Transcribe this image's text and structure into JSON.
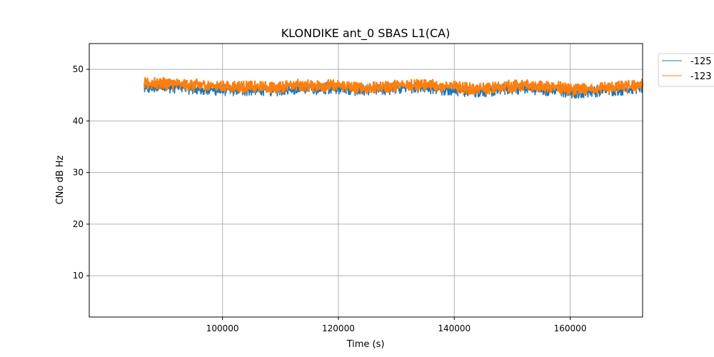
{
  "chart_data": {
    "type": "line",
    "title": "KLONDIKE ant_0 SBAS L1(CA)",
    "xlabel": "Time (s)",
    "ylabel": "CNo dB Hz",
    "xlim": [
      77000,
      172500
    ],
    "ylim": [
      2,
      55
    ],
    "xticks": [
      100000,
      120000,
      140000,
      160000
    ],
    "yticks": [
      10,
      20,
      30,
      40,
      50
    ],
    "grid": true,
    "legend_position": "outside-top-right",
    "series": [
      {
        "name": "-125",
        "color": "#1f77b4",
        "x": [
          86500,
          89000,
          92000,
          95000,
          98000,
          101000,
          104000,
          107000,
          110000,
          113000,
          116000,
          119000,
          122000,
          125000,
          128000,
          131000,
          134000,
          137000,
          140000,
          143000,
          146000,
          149000,
          152000,
          155000,
          158000,
          160500,
          163000,
          166000,
          169000,
          172500
        ],
        "y": [
          46.3,
          46.6,
          46.5,
          46.2,
          46.1,
          46.0,
          46.0,
          45.9,
          46.0,
          46.3,
          46.2,
          46.4,
          46.1,
          45.9,
          46.1,
          46.4,
          46.6,
          46.2,
          46.0,
          45.7,
          45.8,
          46.2,
          46.4,
          46.1,
          45.9,
          45.4,
          45.7,
          45.9,
          46.1,
          46.6
        ]
      },
      {
        "name": "-123",
        "color": "#ff7f0e",
        "x": [
          86500,
          89000,
          92000,
          95000,
          98000,
          101000,
          104000,
          107000,
          110000,
          113000,
          116000,
          119000,
          122000,
          125000,
          128000,
          131000,
          134000,
          137000,
          140000,
          143000,
          146000,
          149000,
          152000,
          155000,
          158000,
          160500,
          163000,
          166000,
          169000,
          172500
        ],
        "y": [
          47.2,
          47.3,
          47.1,
          47.0,
          46.9,
          46.7,
          46.6,
          46.5,
          46.6,
          47.0,
          46.8,
          46.9,
          46.6,
          46.3,
          46.6,
          46.9,
          47.1,
          46.8,
          46.6,
          46.2,
          46.3,
          46.7,
          46.9,
          46.6,
          46.5,
          45.9,
          46.2,
          46.4,
          46.6,
          47.0
        ]
      }
    ]
  }
}
